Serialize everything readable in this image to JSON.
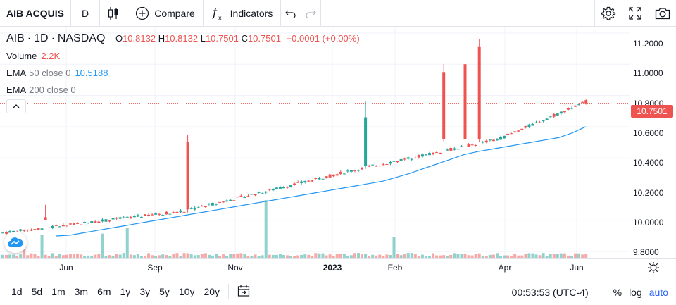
{
  "toolbar": {
    "symbol": "AIB ACQUIS",
    "interval": "D",
    "compare_label": "Compare",
    "indicators_label": "Indicators"
  },
  "legend": {
    "symbol": "AIB",
    "interval": "1D",
    "exchange": "NASDAQ",
    "open_key": "O",
    "open": "10.8132",
    "high_key": "H",
    "high": "10.8132",
    "low_key": "L",
    "low": "10.7501",
    "close_key": "C",
    "close": "10.7501",
    "change": "+0.0001 (+0.00%)",
    "volume_label": "Volume",
    "volume_value": "2.2K",
    "ema50_label": "EMA",
    "ema50_params": "50 close 0",
    "ema50_value": "10.5188",
    "ema200_label": "EMA",
    "ema200_params": "200 close 0"
  },
  "price_axis": {
    "labels": [
      "11.2000",
      "11.0000",
      "10.8000",
      "10.6000",
      "10.4000",
      "10.2000",
      "10.0000",
      "9.8000"
    ],
    "last_price": "10.7501"
  },
  "time_axis": {
    "labels": [
      {
        "text": "Jun",
        "bold": false
      },
      {
        "text": "Sep",
        "bold": false
      },
      {
        "text": "Nov",
        "bold": false
      },
      {
        "text": "2023",
        "bold": true
      },
      {
        "text": "Feb",
        "bold": false
      },
      {
        "text": "Apr",
        "bold": false
      },
      {
        "text": "Jun",
        "bold": false
      }
    ]
  },
  "bottombar": {
    "ranges": [
      "1d",
      "5d",
      "1m",
      "3m",
      "6m",
      "1y",
      "3y",
      "5y",
      "10y",
      "20y"
    ],
    "clock": "00:53:53 (UTC-4)",
    "percent": "%",
    "log": "log",
    "auto": "auto"
  },
  "colors": {
    "up": "#26a69a",
    "down": "#ef5350",
    "ema50": "#2196f3",
    "accent": "#2962ff"
  },
  "chart_data": {
    "type": "candlestick",
    "y_range": [
      9.76,
      11.24
    ],
    "ema50": [
      9.9,
      9.905,
      9.92,
      9.935,
      9.95,
      9.965,
      9.98,
      9.995,
      10.01,
      10.025,
      10.04,
      10.055,
      10.07,
      10.085,
      10.1,
      10.115,
      10.13,
      10.145,
      10.16,
      10.175,
      10.19,
      10.205,
      10.22,
      10.235,
      10.25,
      10.275,
      10.3,
      10.33,
      10.36,
      10.39,
      10.42,
      10.44,
      10.455,
      10.47,
      10.485,
      10.5,
      10.515,
      10.53,
      10.56,
      10.6
    ]
  }
}
